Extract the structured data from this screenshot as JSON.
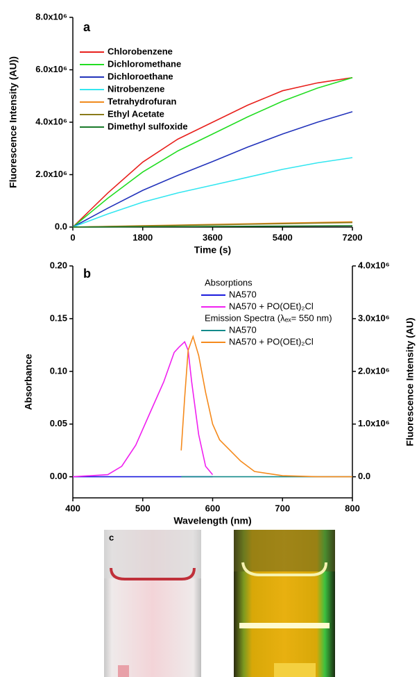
{
  "chart_data": [
    {
      "type": "line",
      "panel_label": "a",
      "x_label": "Time (s)",
      "y_label": "Fluorescence Intensity (AU))",
      "x": [
        0,
        900,
        1800,
        2700,
        3600,
        4500,
        5400,
        6300,
        7200
      ],
      "xlim": [
        0,
        7200
      ],
      "xticks": [
        0,
        1800,
        3600,
        5400,
        7200
      ],
      "ylim": [
        0,
        8000000
      ],
      "yticks": [
        {
          "value": 0,
          "label": "0.0"
        },
        {
          "value": 2000000,
          "label": "2.0x10⁶"
        },
        {
          "value": 4000000,
          "label": "4.0x10⁶"
        },
        {
          "value": 6000000,
          "label": "6.0x10⁶"
        },
        {
          "value": 8000000,
          "label": "8.0x10⁶"
        }
      ],
      "legend": "upper left",
      "series": [
        {
          "name": "Chlorobenzene",
          "color": "#e8201c",
          "values": [
            0,
            1300000,
            2480000,
            3350000,
            4000000,
            4650000,
            5200000,
            5500000,
            5700000
          ]
        },
        {
          "name": "Dichloromethane",
          "color": "#22dd22",
          "values": [
            0,
            1100000,
            2100000,
            2900000,
            3550000,
            4200000,
            4800000,
            5300000,
            5700000
          ]
        },
        {
          "name": "Dichloroethane",
          "color": "#2233bb",
          "values": [
            0,
            720000,
            1400000,
            1970000,
            2500000,
            3050000,
            3550000,
            4000000,
            4400000
          ]
        },
        {
          "name": "Nitrobenzene",
          "color": "#33e6f0",
          "values": [
            0,
            500000,
            950000,
            1300000,
            1600000,
            1900000,
            2200000,
            2450000,
            2650000
          ]
        },
        {
          "name": "Tetrahydrofuran",
          "color": "#f08a1c",
          "values": [
            0,
            25000,
            50000,
            75000,
            100000,
            125000,
            150000,
            175000,
            200000
          ]
        },
        {
          "name": "Ethyl Acetate",
          "color": "#8a7a1a",
          "values": [
            0,
            21000,
            42000,
            64000,
            85000,
            106000,
            128000,
            150000,
            170000
          ]
        },
        {
          "name": "Dimethyl sulfoxide",
          "color": "#1a7a2a",
          "values": [
            0,
            6000,
            12000,
            19000,
            25000,
            31000,
            37000,
            44000,
            50000
          ]
        }
      ]
    },
    {
      "type": "line",
      "panel_label": "b",
      "x_label": "Wavelength (nm)",
      "y_label": "Absorbance",
      "y2_label": "Fluorescence Intensity (AU)",
      "xlim": [
        400,
        800
      ],
      "xticks": [
        400,
        500,
        600,
        700,
        800
      ],
      "ylim": [
        -0.02,
        0.2
      ],
      "yticks": [
        {
          "value": 0,
          "label": "0.00"
        },
        0.05,
        {
          "value": 0.1,
          "label": "0.10"
        },
        0.15,
        {
          "value": 0.2,
          "label": "0.20"
        }
      ],
      "y2lim": [
        -400000,
        4000000
      ],
      "y2ticks": [
        {
          "value": 0,
          "label": "0.0"
        },
        {
          "value": 1000000,
          "label": "1.0x10⁶"
        },
        {
          "value": 2000000,
          "label": "2.0x10⁶"
        },
        {
          "value": 3000000,
          "label": "3.0x10⁶"
        },
        {
          "value": 4000000,
          "label": "4.0x10⁶"
        }
      ],
      "legend": "upper center",
      "legend_titles": [
        "Absorptions",
        "Emission Spectra (λₑₓ= 550 nm)"
      ],
      "series": [
        {
          "name": "NA570",
          "color": "#1a1add",
          "axis": "y",
          "x": [
            400,
            600
          ],
          "values": [
            0,
            0
          ]
        },
        {
          "name": "NA570 + PO(OEt)₂Cl",
          "color": "#f020f0",
          "axis": "y",
          "x": [
            400,
            450,
            470,
            490,
            510,
            530,
            545,
            552,
            560,
            565,
            570,
            580,
            590,
            600
          ],
          "values": [
            0,
            0.002,
            0.01,
            0.03,
            0.06,
            0.09,
            0.118,
            0.123,
            0.128,
            0.12,
            0.09,
            0.04,
            0.01,
            0.002
          ]
        },
        {
          "name": "NA570",
          "color": "#138a8a",
          "axis": "y2",
          "x": [
            555,
            800
          ],
          "values": [
            0,
            0
          ]
        },
        {
          "name": "NA570 + PO(OEt)₂Cl",
          "color": "#f58a1c",
          "axis": "y2",
          "x": [
            555,
            560,
            565,
            572,
            580,
            590,
            600,
            610,
            625,
            640,
            660,
            700,
            750,
            800
          ],
          "values": [
            500000,
            1500000,
            2400000,
            2660000,
            2300000,
            1600000,
            1000000,
            700000,
            500000,
            300000,
            100000,
            20000,
            0,
            0
          ]
        }
      ]
    }
  ],
  "photos": {
    "label": "c"
  }
}
